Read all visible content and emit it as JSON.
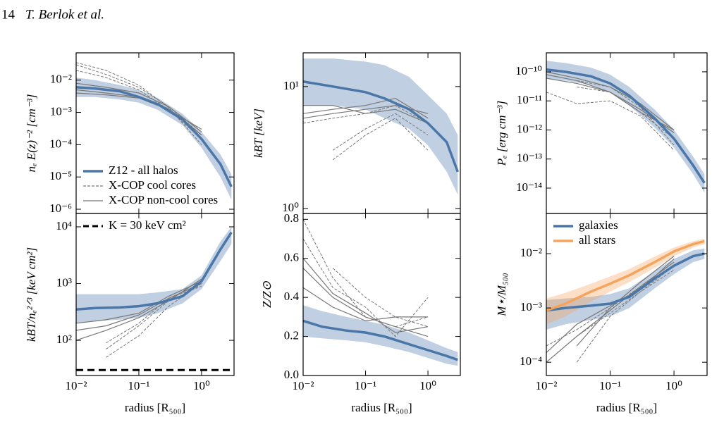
{
  "header": {
    "page": "14",
    "authors": "T. Berlok et al."
  },
  "chart_data": [
    {
      "type": "line",
      "log_x": true,
      "log_y": true,
      "ylabel": "nₑ E(z)⁻²  [cm⁻³]",
      "xlim": [
        0.01,
        3.3
      ],
      "ylim": [
        7.4e-07,
        0.07
      ],
      "xticks": [
        0.01,
        0.1,
        1
      ],
      "yticks": [
        {
          "value": 1e-06,
          "label": "10⁻⁶"
        },
        {
          "value": 1e-05,
          "label": "10⁻⁵"
        },
        {
          "value": 0.0001,
          "label": "10⁻⁴"
        },
        {
          "value": 0.001,
          "label": "10⁻³"
        },
        {
          "value": 0.01,
          "label": "10⁻²"
        }
      ],
      "legend": "lower left",
      "x": [
        0.01,
        0.02,
        0.05,
        0.1,
        0.2,
        0.5,
        1,
        2,
        3
      ],
      "series": [
        {
          "name": "Z12 - all halos",
          "color": "#4a76a8",
          "values": [
            0.006,
            0.0055,
            0.0045,
            0.003,
            0.0018,
            0.0006,
            0.00015,
            2.5e-05,
            5e-06
          ],
          "lower": [
            0.003,
            0.003,
            0.0025,
            0.002,
            0.0012,
            0.0004,
            8e-05,
            1e-05,
            2e-06
          ],
          "upper": [
            0.012,
            0.01,
            0.007,
            0.005,
            0.0028,
            0.0009,
            0.00025,
            5e-05,
            1.2e-05
          ]
        },
        {
          "name": "X-COP cool cores",
          "color": "#777777",
          "dashed": true,
          "x": [
            0.01,
            0.03,
            0.1,
            0.3,
            1
          ],
          "profiles": [
            [
              0.03,
              0.015,
              0.006,
              0.0015,
              0.0002
            ],
            [
              0.02,
              0.012,
              0.005,
              0.0012,
              0.00015
            ],
            [
              0.035,
              0.02,
              0.007,
              0.0014,
              0.0001
            ]
          ]
        },
        {
          "name": "X-COP non-cool cores",
          "color": "#777777",
          "dashed": false,
          "x": [
            0.01,
            0.03,
            0.1,
            0.3,
            1
          ],
          "profiles": [
            [
              0.005,
              0.004,
              0.003,
              0.0013,
              0.0002
            ],
            [
              0.008,
              0.006,
              0.004,
              0.0015,
              0.00025
            ],
            [
              0.004,
              0.0035,
              0.0028,
              0.0012,
              0.0003
            ]
          ]
        }
      ]
    },
    {
      "type": "line",
      "log_x": true,
      "log_y": true,
      "ylabel": "kBT  [keV]",
      "xlim": [
        0.01,
        3.3
      ],
      "ylim": [
        0.91,
        18.9
      ],
      "xticks": [
        0.01,
        0.1,
        1
      ],
      "yticks": [
        {
          "value": 1,
          "label": "10⁰"
        },
        {
          "value": 10,
          "label": "10¹"
        }
      ],
      "x": [
        0.01,
        0.03,
        0.1,
        0.2,
        0.5,
        1,
        2,
        3
      ],
      "series": [
        {
          "color": "#4a76a8",
          "values": [
            11,
            10,
            9,
            8,
            6.5,
            5,
            3.5,
            2
          ],
          "lower": [
            7,
            7,
            6.5,
            5.5,
            4.5,
            3.3,
            2,
            1.3
          ],
          "upper": [
            17,
            17,
            16,
            15,
            12,
            8.5,
            6,
            4
          ]
        },
        {
          "color": "#777777",
          "dashed": true,
          "x": [
            0.01,
            0.03,
            0.1,
            0.3,
            1
          ],
          "profiles": [
            [
              null,
              3,
              4.5,
              6,
              4
            ],
            [
              5,
              5.5,
              6,
              7,
              5
            ],
            [
              null,
              2.5,
              4,
              5.5,
              3
            ]
          ]
        },
        {
          "color": "#777777",
          "dashed": false,
          "x": [
            0.01,
            0.03,
            0.1,
            0.3,
            1
          ],
          "profiles": [
            [
              6,
              6.5,
              7,
              8,
              5.5
            ],
            [
              5.5,
              6,
              6.5,
              7,
              6
            ],
            [
              7,
              7,
              6,
              6.5,
              5
            ]
          ]
        }
      ]
    },
    {
      "type": "line",
      "log_x": true,
      "log_y": true,
      "ylabel": "Pₑ  [erg cm⁻³]",
      "xlim": [
        0.01,
        3.3
      ],
      "ylim": [
        1.34e-15,
        4.5e-10
      ],
      "xticks": [
        0.01,
        0.1,
        1
      ],
      "yticks": [
        {
          "value": 1e-14,
          "label": "10⁻¹⁴"
        },
        {
          "value": 1e-13,
          "label": "10⁻¹³"
        },
        {
          "value": 1e-12,
          "label": "10⁻¹²"
        },
        {
          "value": 1e-11,
          "label": "10⁻¹¹"
        },
        {
          "value": 1e-10,
          "label": "10⁻¹⁰"
        }
      ],
      "x": [
        0.01,
        0.02,
        0.05,
        0.1,
        0.2,
        0.5,
        1,
        2,
        3
      ],
      "series": [
        {
          "color": "#4a76a8",
          "values": [
            1.2e-10,
            1e-10,
            7e-11,
            4e-11,
            1.5e-11,
            2.5e-12,
            5e-13,
            6e-14,
            1.5e-14
          ],
          "lower": [
            6e-11,
            5e-11,
            3.5e-11,
            2e-11,
            7e-12,
            1.2e-12,
            2.5e-13,
            3e-14,
            7e-15
          ],
          "upper": [
            2.4e-10,
            2e-10,
            1.4e-10,
            8e-11,
            3e-11,
            5e-12,
            1e-12,
            1.2e-13,
            3e-14
          ]
        },
        {
          "color": "#777777",
          "dashed": true,
          "x": [
            0.01,
            0.03,
            0.1,
            0.3,
            1
          ],
          "profiles": [
            [
              null,
              5e-11,
              3e-11,
              6e-12,
              3e-13
            ],
            [
              2e-11,
              8e-12,
              1e-11,
              3e-12,
              2e-13
            ],
            [
              null,
              3e-11,
              2e-11,
              4e-12,
              5e-13
            ]
          ]
        },
        {
          "color": "#777777",
          "dashed": false,
          "x": [
            0.01,
            0.03,
            0.1,
            0.3,
            1
          ],
          "profiles": [
            [
              1e-10,
              6e-11,
              3e-11,
              8e-12,
              1e-12
            ],
            [
              8e-11,
              5e-11,
              2e-11,
              5e-12,
              8e-13
            ],
            [
              6e-11,
              4e-11,
              2e-11,
              4e-12,
              1e-12
            ]
          ]
        }
      ]
    },
    {
      "type": "line",
      "log_x": true,
      "log_y": true,
      "ylabel": "kBT/nₑ²ᐟ³  [keV cm²]",
      "xlabel": "radius [R₅₀₀]",
      "xlim": [
        0.01,
        3.3
      ],
      "ylim": [
        24,
        17200
      ],
      "xticks": [
        {
          "value": 0.01,
          "label": "10⁻²"
        },
        {
          "value": 0.1,
          "label": "10⁻¹"
        },
        {
          "value": 1,
          "label": "10⁰"
        }
      ],
      "yticks": [
        {
          "value": 100,
          "label": "10²"
        },
        {
          "value": 1000,
          "label": "10³"
        },
        {
          "value": 10000,
          "label": "10⁴"
        }
      ],
      "legend": "upper left",
      "hline": {
        "value": 30,
        "label": "K = 30 keV cm²",
        "color": "#000000"
      },
      "x": [
        0.01,
        0.02,
        0.05,
        0.1,
        0.2,
        0.5,
        1,
        2,
        3
      ],
      "series": [
        {
          "color": "#4a76a8",
          "values": [
            350,
            370,
            380,
            400,
            450,
            600,
            1100,
            4000,
            8000
          ],
          "lower": [
            200,
            220,
            230,
            250,
            300,
            450,
            800,
            2500,
            5000
          ],
          "upper": [
            650,
            650,
            650,
            650,
            700,
            800,
            1400,
            5500,
            10000
          ]
        },
        {
          "color": "#777777",
          "dashed": true,
          "x": [
            0.01,
            0.03,
            0.1,
            0.3,
            1
          ],
          "profiles": [
            [
              null,
              50,
              120,
              400,
              1000
            ],
            [
              null,
              70,
              180,
              500,
              1200
            ],
            [
              null,
              90,
              200,
              550,
              900
            ]
          ]
        },
        {
          "color": "#777777",
          "dashed": false,
          "x": [
            0.01,
            0.03,
            0.1,
            0.3,
            1
          ],
          "profiles": [
            [
              200,
              230,
              300,
              600,
              1100
            ],
            [
              100,
              150,
              250,
              500,
              1200
            ],
            [
              150,
              180,
              280,
              550,
              1000
            ]
          ]
        }
      ]
    },
    {
      "type": "line",
      "log_x": true,
      "log_y": false,
      "ylabel": "Z/Z⊙",
      "xlabel": "radius [R₅₀₀]",
      "xlim": [
        0.01,
        3.3
      ],
      "ylim": [
        0,
        0.83
      ],
      "xticks": [
        {
          "value": 0.01,
          "label": "10⁻²"
        },
        {
          "value": 0.1,
          "label": "10⁻¹"
        },
        {
          "value": 1,
          "label": "10⁰"
        }
      ],
      "yticks": [
        {
          "value": 0,
          "label": "0.0"
        },
        0.2,
        0.4,
        0.6,
        0.8
      ],
      "x": [
        0.01,
        0.02,
        0.05,
        0.1,
        0.2,
        0.5,
        1,
        2,
        3
      ],
      "series": [
        {
          "color": "#4a76a8",
          "values": [
            0.28,
            0.25,
            0.23,
            0.22,
            0.2,
            0.16,
            0.13,
            0.1,
            0.08
          ],
          "lower": [
            0.2,
            0.19,
            0.18,
            0.17,
            0.15,
            0.12,
            0.09,
            0.06,
            0.05
          ],
          "upper": [
            0.36,
            0.33,
            0.3,
            0.28,
            0.26,
            0.22,
            0.18,
            0.14,
            0.12
          ]
        },
        {
          "color": "#777777",
          "dashed": true,
          "x": [
            0.01,
            0.03,
            0.1,
            0.3,
            1
          ],
          "profiles": [
            [
              0.8,
              0.5,
              0.3,
              0.25,
              0.3
            ],
            [
              0.7,
              0.45,
              0.35,
              0.2,
              0.4
            ],
            [
              null,
              0.55,
              0.4,
              0.3,
              0.25
            ]
          ]
        },
        {
          "color": "#777777",
          "dashed": false,
          "x": [
            0.01,
            0.03,
            0.1,
            0.3,
            1
          ],
          "profiles": [
            [
              0.55,
              0.4,
              0.3,
              0.25,
              0.2
            ],
            [
              0.45,
              0.35,
              0.28,
              0.3,
              0.3
            ],
            [
              0.6,
              0.42,
              0.32,
              0.22,
              0.25
            ]
          ]
        }
      ]
    },
    {
      "type": "line",
      "log_x": true,
      "log_y": true,
      "ylabel": "M⋆/M₅₀₀",
      "xlabel": "radius [R₅₀₀]",
      "xlim": [
        0.01,
        3.3
      ],
      "ylim": [
        5.7e-05,
        0.055
      ],
      "xticks": [
        {
          "value": 0.01,
          "label": "10⁻²"
        },
        {
          "value": 0.1,
          "label": "10⁻¹"
        },
        {
          "value": 1,
          "label": "10⁰"
        }
      ],
      "yticks": [
        {
          "value": 0.0001,
          "label": "10⁻⁴"
        },
        {
          "value": 0.001,
          "label": "10⁻³"
        },
        {
          "value": 0.01,
          "label": "10⁻²"
        }
      ],
      "legend": "upper left",
      "x": [
        0.01,
        0.02,
        0.05,
        0.1,
        0.2,
        0.5,
        1,
        2,
        3
      ],
      "series": [
        {
          "name": "galaxies",
          "color": "#4a76a8",
          "values": [
            0.0009,
            0.001,
            0.0011,
            0.0012,
            0.0016,
            0.0035,
            0.006,
            0.009,
            0.01
          ],
          "lower": [
            0.0004,
            0.0005,
            0.0006,
            0.0007,
            0.001,
            0.0023,
            0.0042,
            0.007,
            0.008
          ],
          "upper": [
            0.0014,
            0.0015,
            0.0016,
            0.0018,
            0.0023,
            0.0048,
            0.008,
            0.0115,
            0.0125
          ]
        },
        {
          "name": "all stars",
          "color": "#f5a45d",
          "values": [
            0.0009,
            0.0012,
            0.002,
            0.0028,
            0.004,
            0.007,
            0.011,
            0.015,
            0.017
          ],
          "lower": [
            0.0005,
            0.0007,
            0.0013,
            0.002,
            0.003,
            0.0055,
            0.009,
            0.013,
            0.015
          ],
          "upper": [
            0.0015,
            0.0019,
            0.0028,
            0.0038,
            0.0052,
            0.0088,
            0.013,
            0.017,
            0.019
          ]
        },
        {
          "color": "#777777",
          "dashed": true,
          "x": [
            0.01,
            0.03,
            0.1,
            0.3,
            1
          ],
          "profiles": [
            [
              null,
              0.0003,
              0.0008,
              0.002,
              0.005
            ],
            [
              null,
              0.0001,
              0.0007,
              0.002,
              0.006
            ],
            [
              0.0002,
              0.0004,
              0.001,
              0.0025,
              0.006
            ]
          ]
        },
        {
          "color": "#777777",
          "dashed": false,
          "x": [
            0.01,
            0.03,
            0.1,
            0.3,
            1
          ],
          "profiles": [
            [
              0.0001,
              0.0003,
              0.0009,
              0.0025,
              0.007
            ],
            [
              0.00015,
              0.0005,
              0.0011,
              0.0022,
              0.008
            ],
            [
              null,
              0.0002,
              0.001,
              0.003,
              0.009
            ]
          ]
        }
      ]
    }
  ]
}
